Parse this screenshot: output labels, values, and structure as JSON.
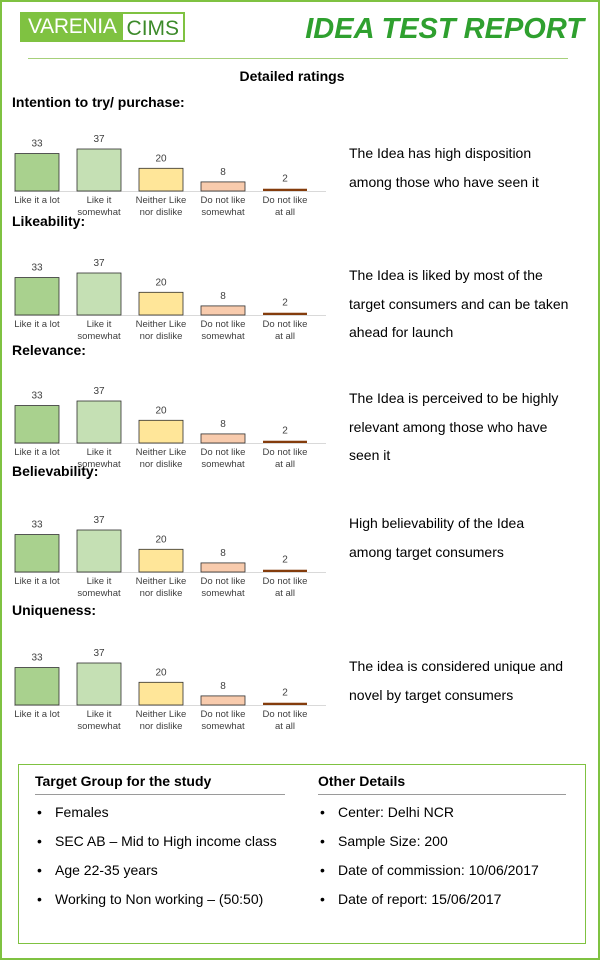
{
  "header": {
    "logo_left": "VARENIA",
    "logo_right": "CIMS",
    "title": "IDEA TEST REPORT"
  },
  "section_heading": "Detailed ratings",
  "palette": {
    "frame": "#7fc241",
    "title_green": "#2fa02f",
    "bars": [
      "#a9d18e",
      "#c5e0b4",
      "#ffe699",
      "#f8cbad",
      "#843c0c"
    ]
  },
  "chart_data": [
    {
      "type": "bar",
      "title": "Intention to try/ purchase:",
      "categories": [
        "Like it a lot",
        "Like it somewhat",
        "Neither Like nor dislike",
        "Do not like somewhat",
        "Do not like at all"
      ],
      "values": [
        33,
        37,
        20,
        8,
        2
      ],
      "ylim": [
        0,
        37
      ],
      "grid": false
    },
    {
      "type": "bar",
      "title": "Likeability:",
      "categories": [
        "Like it a lot",
        "Like it somewhat",
        "Neither Like nor dislike",
        "Do not like somewhat",
        "Do not like at all"
      ],
      "values": [
        33,
        37,
        20,
        8,
        2
      ],
      "ylim": [
        0,
        37
      ],
      "grid": false
    },
    {
      "type": "bar",
      "title": "Relevance:",
      "categories": [
        "Like it a lot",
        "Like it somewhat",
        "Neither Like nor dislike",
        "Do not like somewhat",
        "Do not like at all"
      ],
      "values": [
        33,
        37,
        20,
        8,
        2
      ],
      "ylim": [
        0,
        37
      ],
      "grid": false
    },
    {
      "type": "bar",
      "title": "Believability:",
      "categories": [
        "Like it a lot",
        "Like it somewhat",
        "Neither Like nor dislike",
        "Do not like somewhat",
        "Do not like at all"
      ],
      "values": [
        33,
        37,
        20,
        8,
        2
      ],
      "ylim": [
        0,
        37
      ],
      "grid": false
    },
    {
      "type": "bar",
      "title": "Uniqueness:",
      "categories": [
        "Like it a lot",
        "Like it somewhat",
        "Neither Like nor dislike",
        "Do not like somewhat",
        "Do not like at all"
      ],
      "values": [
        33,
        37,
        20,
        8,
        2
      ],
      "ylim": [
        0,
        37
      ],
      "grid": false
    }
  ],
  "comments": [
    [
      "The Idea has high disposition",
      "among those who have seen it"
    ],
    [
      "The Idea is liked by most of the",
      "target consumers and can be taken",
      "ahead for launch"
    ],
    [
      "The Idea is perceived to be highly",
      "relevant among those who have",
      "seen it"
    ],
    [
      "High believability of the Idea",
      "among target consumers"
    ],
    [
      "The idea is considered unique and",
      "novel by target consumers"
    ]
  ],
  "target_group": {
    "title": "Target Group for the study",
    "items": [
      "Females",
      "SEC AB – Mid to High income class",
      "Age 22-35 years",
      "Working to Non working – (50:50)"
    ]
  },
  "other_details": {
    "title": "Other Details",
    "items": [
      "Center: Delhi NCR",
      "Sample Size: 200",
      "Date of commission: 10/06/2017",
      "Date of report:  15/06/2017"
    ]
  }
}
